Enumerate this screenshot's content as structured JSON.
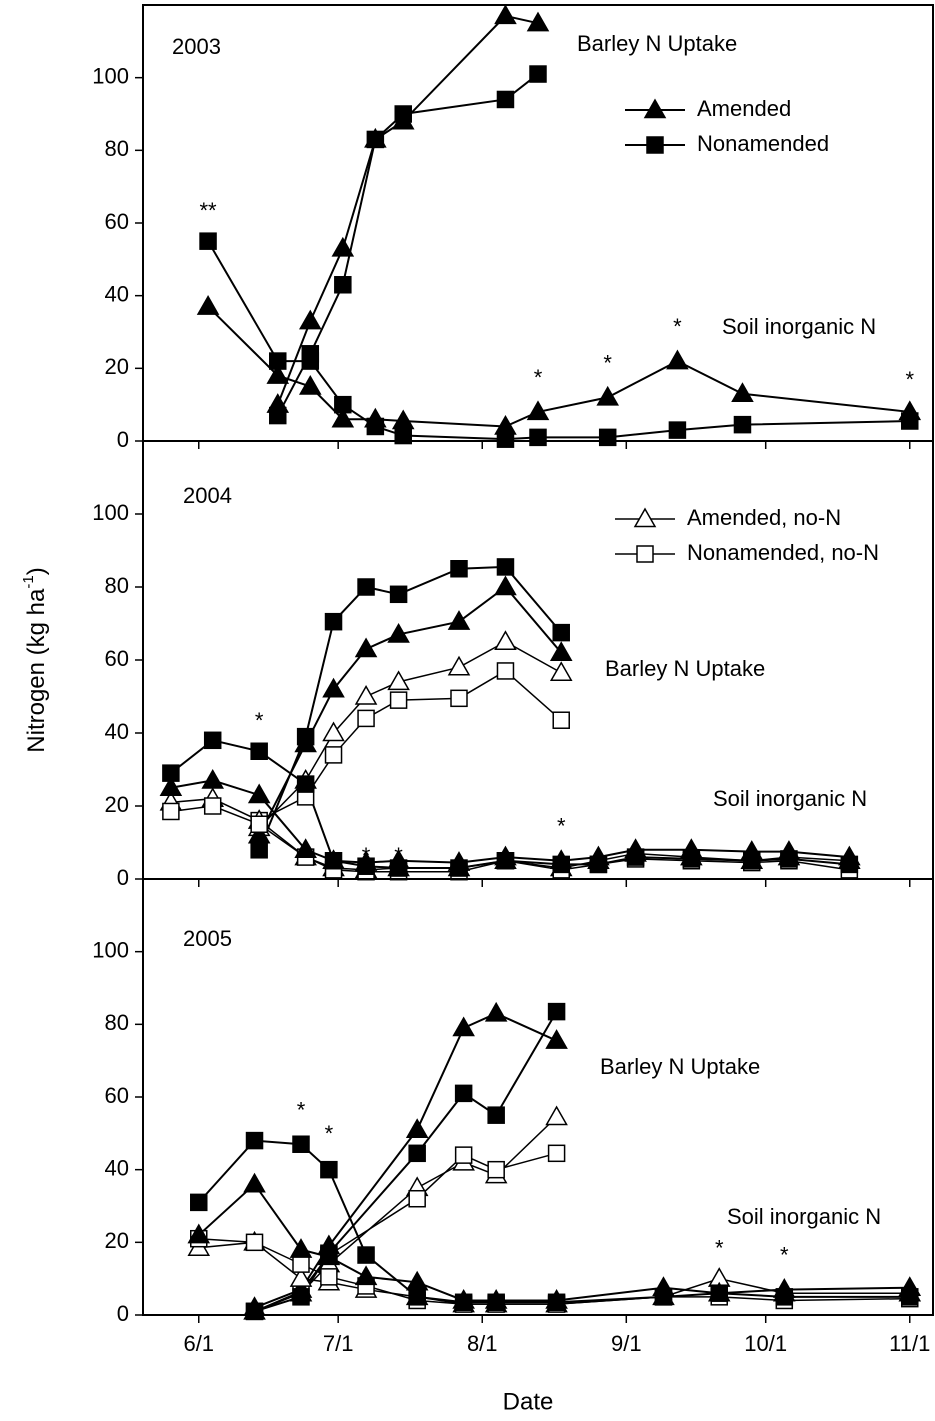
{
  "chart_data": [
    {
      "type": "line",
      "title": "2003",
      "labels": [
        "Barley N Uptake",
        "Soil inorganic N"
      ],
      "xlim": [
        140,
        310
      ],
      "ylim": [
        0,
        120
      ],
      "yticks": [
        0,
        20,
        40,
        60,
        80,
        100
      ],
      "legend_entries": [
        {
          "name": "Amended",
          "marker": "triangle",
          "filled": true
        },
        {
          "name": "Nonamended",
          "marker": "square",
          "filled": true
        }
      ],
      "series": [
        {
          "marker": "triangle",
          "filled": true,
          "color": "#000000",
          "x": [
            169,
            176,
            183,
            190,
            196,
            218,
            225
          ],
          "values": [
            10,
            33,
            53,
            83,
            88,
            117,
            115
          ]
        },
        {
          "marker": "square",
          "filled": true,
          "color": "#000000",
          "x": [
            169,
            176,
            183,
            190,
            196,
            218,
            225
          ],
          "values": [
            7,
            24,
            43,
            83,
            90,
            94,
            101
          ]
        },
        {
          "marker": "triangle",
          "filled": true,
          "color": "#000000",
          "x": [
            154,
            169,
            176,
            183,
            190,
            196,
            218,
            225,
            240,
            255,
            269,
            305
          ],
          "values": [
            37,
            18,
            15,
            6,
            6,
            5.5,
            4,
            8,
            12,
            22,
            13,
            8
          ]
        },
        {
          "marker": "square",
          "filled": true,
          "color": "#000000",
          "x": [
            154,
            169,
            176,
            183,
            190,
            196,
            218,
            225,
            240,
            255,
            269,
            305
          ],
          "values": [
            55,
            22,
            22,
            10,
            4,
            1.5,
            0.5,
            1,
            1,
            3,
            4.5,
            5.5
          ]
        }
      ],
      "annotations": [
        {
          "text": "**",
          "x": 154,
          "y": 63
        },
        {
          "text": "*",
          "x": 225,
          "y": 17
        },
        {
          "text": "*",
          "x": 240,
          "y": 21
        },
        {
          "text": "*",
          "x": 255,
          "y": 31
        },
        {
          "text": "*",
          "x": 305,
          "y": 16.5
        }
      ]
    },
    {
      "type": "line",
      "title": "2004",
      "labels": [
        "Barley N Uptake",
        "Soil inorganic N"
      ],
      "ylabel": [
        "Nitrogen (kg ha",
        "-1",
        ")"
      ],
      "xlim": [
        140,
        310
      ],
      "ylim": [
        0,
        120
      ],
      "yticks": [
        0,
        20,
        40,
        60,
        80,
        100
      ],
      "legend_entries": [
        {
          "name": "Amended, no-N",
          "marker": "triangle",
          "filled": false
        },
        {
          "name": "Nonamended, no-N",
          "marker": "square",
          "filled": false
        }
      ],
      "series": [
        {
          "marker": "triangle",
          "filled": false,
          "color": "#000000",
          "x": [
            165,
            175,
            181,
            188,
            195,
            208,
            218,
            230
          ],
          "values": [
            14,
            27,
            40,
            50,
            54,
            58,
            65,
            56.5
          ]
        },
        {
          "marker": "square",
          "filled": false,
          "color": "#000000",
          "x": [
            165,
            175,
            181,
            188,
            195,
            208,
            218,
            230
          ],
          "values": [
            16,
            22.5,
            34,
            44,
            49,
            49.5,
            57,
            43.5
          ]
        },
        {
          "marker": "triangle",
          "filled": true,
          "color": "#000000",
          "x": [
            165,
            175,
            181,
            188,
            195,
            208,
            218,
            230
          ],
          "values": [
            12,
            37,
            52,
            63,
            67,
            70.5,
            80,
            62
          ]
        },
        {
          "marker": "square",
          "filled": true,
          "color": "#000000",
          "x": [
            165,
            175,
            181,
            188,
            195,
            208,
            218,
            230
          ],
          "values": [
            8,
            39,
            70.5,
            80,
            78,
            85,
            85.5,
            67.5
          ]
        },
        {
          "marker": "triangle",
          "filled": false,
          "color": "#000000",
          "x": [
            146,
            155,
            165,
            175,
            181,
            188,
            195,
            208,
            218,
            230,
            238,
            246,
            258,
            271,
            279,
            292
          ],
          "values": [
            21,
            22,
            16,
            6,
            3,
            2.5,
            3,
            3,
            5,
            3,
            5,
            7,
            6,
            5,
            6,
            5
          ]
        },
        {
          "marker": "square",
          "filled": false,
          "color": "#000000",
          "x": [
            146,
            155,
            165,
            175,
            181,
            188,
            195,
            208,
            218,
            230,
            238,
            246,
            258,
            271,
            279,
            292
          ],
          "values": [
            18.5,
            20,
            15,
            6,
            2.5,
            2,
            2,
            2,
            5,
            2.5,
            4,
            5.5,
            5,
            4.5,
            5,
            2.5
          ]
        },
        {
          "marker": "triangle",
          "filled": true,
          "color": "#000000",
          "x": [
            146,
            155,
            165,
            175,
            181,
            188,
            195,
            208,
            218,
            230,
            238,
            246,
            258,
            271,
            279,
            292
          ],
          "values": [
            25,
            27,
            23,
            8,
            5,
            4.5,
            5,
            4.5,
            6,
            5,
            6,
            8,
            8,
            7.5,
            7.5,
            6
          ]
        },
        {
          "marker": "square",
          "filled": true,
          "color": "#000000",
          "x": [
            146,
            155,
            165,
            175,
            181,
            188,
            195,
            208,
            218,
            230,
            238,
            246,
            258,
            271,
            279,
            292
          ],
          "values": [
            29,
            38,
            35,
            26,
            5,
            3.5,
            3,
            3,
            5,
            4,
            4,
            6,
            5.5,
            5,
            5.5,
            4
          ]
        }
      ],
      "annotations": [
        {
          "text": "*",
          "x": 165,
          "y": 43
        },
        {
          "text": "*",
          "x": 188,
          "y": 6
        },
        {
          "text": "*",
          "x": 195,
          "y": 6
        },
        {
          "text": "*",
          "x": 230,
          "y": 14
        }
      ]
    },
    {
      "type": "line",
      "title": "2005",
      "labels": [
        "Barley N Uptake",
        "Soil inorganic N"
      ],
      "xlabel": "Date",
      "xlim": [
        140,
        310
      ],
      "ylim": [
        0,
        120
      ],
      "yticks": [
        0,
        20,
        40,
        60,
        80,
        100
      ],
      "xticks": [
        {
          "value": 152,
          "label": "6/1"
        },
        {
          "value": 182,
          "label": "7/1"
        },
        {
          "value": 213,
          "label": "8/1"
        },
        {
          "value": 244,
          "label": "9/1"
        },
        {
          "value": 274,
          "label": "10/1"
        },
        {
          "value": 305,
          "label": "11/1"
        }
      ],
      "legend_entries": [],
      "series": [
        {
          "marker": "triangle",
          "filled": false,
          "color": "#000000",
          "x": [
            164,
            174,
            180,
            199,
            209,
            216,
            229
          ],
          "values": [
            1,
            6,
            14,
            35,
            42,
            38.5,
            54.5
          ]
        },
        {
          "marker": "square",
          "filled": false,
          "color": "#000000",
          "x": [
            164,
            174,
            180,
            199,
            209,
            216,
            229
          ],
          "values": [
            1,
            6.5,
            16.5,
            32,
            44,
            40,
            44.5
          ]
        },
        {
          "marker": "triangle",
          "filled": true,
          "color": "#000000",
          "x": [
            164,
            174,
            180,
            199,
            209,
            216,
            229
          ],
          "values": [
            2,
            7,
            19,
            51,
            79,
            83,
            75.5
          ]
        },
        {
          "marker": "square",
          "filled": true,
          "color": "#000000",
          "x": [
            164,
            174,
            180,
            199,
            209,
            216,
            229
          ],
          "values": [
            1,
            5,
            17,
            44.5,
            61,
            55,
            83.5
          ]
        },
        {
          "marker": "triangle",
          "filled": false,
          "color": "#000000",
          "x": [
            152,
            164,
            174,
            180,
            188,
            199,
            209,
            216,
            229,
            252,
            264,
            278,
            305
          ],
          "values": [
            18.5,
            20,
            10,
            9,
            7,
            5,
            3,
            3,
            3,
            5,
            10,
            6,
            6
          ]
        },
        {
          "marker": "square",
          "filled": false,
          "color": "#000000",
          "x": [
            152,
            164,
            174,
            180,
            188,
            199,
            209,
            216,
            229,
            252,
            264,
            278,
            305
          ],
          "values": [
            21,
            20,
            14,
            10.5,
            8,
            4,
            3,
            3,
            3,
            5,
            5,
            4,
            4.5
          ]
        },
        {
          "marker": "triangle",
          "filled": true,
          "color": "#000000",
          "x": [
            152,
            164,
            174,
            180,
            188,
            199,
            209,
            216,
            229,
            252,
            264,
            278,
            305
          ],
          "values": [
            22,
            36,
            18,
            16,
            10.5,
            9,
            4,
            4,
            4,
            7.5,
            6,
            7,
            7.5
          ]
        },
        {
          "marker": "square",
          "filled": true,
          "color": "#000000",
          "x": [
            152,
            164,
            174,
            180,
            188,
            199,
            209,
            216,
            229,
            252,
            264,
            278,
            305
          ],
          "values": [
            31,
            48,
            47,
            40,
            16.5,
            5,
            3.5,
            3.5,
            3.5,
            5,
            6,
            5,
            5
          ]
        }
      ],
      "annotations": [
        {
          "text": "*",
          "x": 174,
          "y": 56
        },
        {
          "text": "*",
          "x": 180,
          "y": 49.5
        },
        {
          "text": "*",
          "x": 264,
          "y": 18
        },
        {
          "text": "*",
          "x": 278,
          "y": 16
        }
      ]
    }
  ]
}
